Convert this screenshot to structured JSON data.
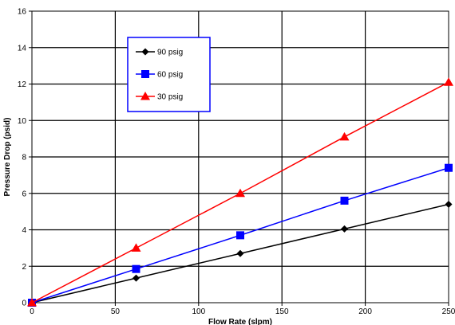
{
  "chart_data": {
    "type": "line",
    "xlabel": "Flow Rate (slpm)",
    "ylabel": "Pressure Drop (psid)",
    "xlim": [
      0,
      250
    ],
    "ylim": [
      0,
      16
    ],
    "xticks": [
      0,
      50,
      100,
      150,
      200,
      250
    ],
    "yticks": [
      0,
      2,
      4,
      6,
      8,
      10,
      12,
      14,
      16
    ],
    "grid": true,
    "legend_position": "top-left",
    "series": [
      {
        "name": "90 psig",
        "color": "#000000",
        "marker": "diamond",
        "x": [
          0,
          62.5,
          125,
          187.5,
          250
        ],
        "y": [
          0,
          1.35,
          2.7,
          4.05,
          5.4
        ]
      },
      {
        "name": "60 psig",
        "color": "#0000ff",
        "marker": "square",
        "x": [
          0,
          62.5,
          125,
          187.5,
          250
        ],
        "y": [
          0,
          1.85,
          3.7,
          5.6,
          7.4
        ]
      },
      {
        "name": "30 psig",
        "color": "#ff0000",
        "marker": "triangle",
        "x": [
          0,
          62.5,
          125,
          187.5,
          250
        ],
        "y": [
          0,
          3.0,
          6.0,
          9.1,
          12.1
        ]
      }
    ]
  }
}
